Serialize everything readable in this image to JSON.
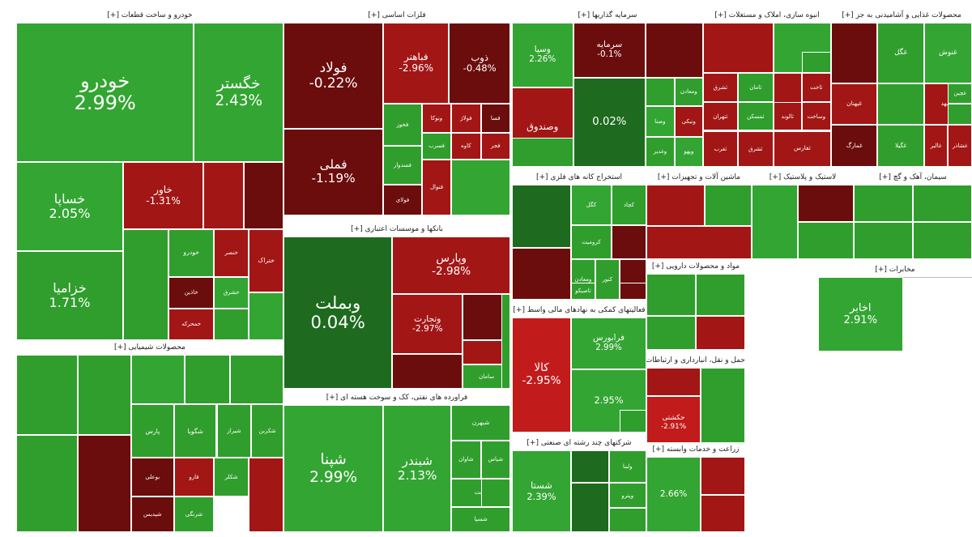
{
  "colors": {
    "strong_up": "#33a532",
    "up": "#2f9e2c",
    "dark_up": "#1e6b1f",
    "strong_down": "#c21b1b",
    "down": "#a31616",
    "dark_down": "#6b0d0d"
  },
  "sectors": [
    {
      "id": "auto",
      "title": "خودرو و ساخت قطعات [+]",
      "tiles": [
        {
          "name": "خودرو",
          "pct": "2.99%",
          "c": "strong_up"
        },
        {
          "name": "خگستر",
          "pct": "2.43%",
          "c": "strong_up"
        },
        {
          "name": "خساپا",
          "pct": "2.05%",
          "c": "strong_up"
        },
        {
          "name": "خاور",
          "pct": "-1.31%",
          "c": "down"
        },
        {
          "name": "",
          "pct": "",
          "c": "down"
        },
        {
          "name": "",
          "pct": "",
          "c": "dark_down"
        },
        {
          "name": "خزامیا",
          "pct": "1.71%",
          "c": "up"
        },
        {
          "name": "",
          "pct": "",
          "c": "up"
        },
        {
          "name": "خودرو",
          "pct": "",
          "c": "up"
        },
        {
          "name": "خنصر",
          "pct": "",
          "c": "down"
        },
        {
          "name": "خاذین",
          "pct": "",
          "c": "dark_down"
        },
        {
          "name": "خمحرکه",
          "pct": "",
          "c": "down"
        },
        {
          "name": "خشرق",
          "pct": "",
          "c": "strong_up"
        },
        {
          "name": "ختراک",
          "pct": "",
          "c": "down"
        },
        {
          "name": "",
          "pct": "",
          "c": "up"
        },
        {
          "name": "",
          "pct": "",
          "c": "strong_up"
        }
      ]
    },
    {
      "id": "chem",
      "title": "محصولات شیمیایی [+]",
      "tiles": [
        {
          "name": "",
          "pct": "",
          "c": "up"
        },
        {
          "name": "",
          "pct": "",
          "c": "up"
        },
        {
          "name": "",
          "pct": "",
          "c": "dark_down"
        },
        {
          "name": "",
          "pct": "",
          "c": "up"
        },
        {
          "name": "",
          "pct": "",
          "c": "strong_up"
        },
        {
          "name": "",
          "pct": "",
          "c": "up"
        },
        {
          "name": "پارس",
          "pct": "",
          "c": "up"
        },
        {
          "name": "بوعلی",
          "pct": "",
          "c": "dark_down"
        },
        {
          "name": "شپدیس",
          "pct": "",
          "c": "dark_down"
        },
        {
          "name": "شرنگی",
          "pct": "",
          "c": "up"
        },
        {
          "name": "شگویا",
          "pct": "",
          "c": "up"
        },
        {
          "name": "شیراز",
          "pct": "",
          "c": "up"
        },
        {
          "name": "شکربن",
          "pct": "",
          "c": "up"
        },
        {
          "name": "فارو",
          "pct": "",
          "c": "down"
        },
        {
          "name": "شکلر",
          "pct": "",
          "c": "up"
        },
        {
          "name": "",
          "pct": "",
          "c": "down"
        },
        {
          "name": "",
          "pct": "",
          "c": "up"
        }
      ]
    },
    {
      "id": "metals",
      "title": "فلزات اساسی [+]",
      "tiles": [
        {
          "name": "فولاد",
          "pct": "-0.22%",
          "c": "dark_down"
        },
        {
          "name": "فباهنر",
          "pct": "-2.96%",
          "c": "down"
        },
        {
          "name": "ذوب",
          "pct": "-0.48%",
          "c": "dark_down"
        },
        {
          "name": "فملی",
          "pct": "-1.19%",
          "c": "dark_down"
        },
        {
          "name": "فخوز",
          "pct": "",
          "c": "up"
        },
        {
          "name": "ونوکا",
          "pct": "",
          "c": "down"
        },
        {
          "name": "فولاژ",
          "pct": "",
          "c": "down"
        },
        {
          "name": "فسا",
          "pct": "",
          "c": "dark_down"
        },
        {
          "name": "فسرب",
          "pct": "",
          "c": "up"
        },
        {
          "name": "کاوه",
          "pct": "",
          "c": "down"
        },
        {
          "name": "فجر",
          "pct": "",
          "c": "down"
        },
        {
          "name": "فسدوار",
          "pct": "",
          "c": "up"
        },
        {
          "name": "فولای",
          "pct": "",
          "c": "dark_down"
        },
        {
          "name": "فنوال",
          "pct": "",
          "c": "down"
        },
        {
          "name": "",
          "pct": "",
          "c": "strong_up"
        }
      ]
    },
    {
      "id": "banks",
      "title": "بانکها و موسسات اعتباری [+]",
      "tiles": [
        {
          "name": "وبملت",
          "pct": "0.04%",
          "c": "dark_up"
        },
        {
          "name": "وپارس",
          "pct": "-2.98%",
          "c": "down"
        },
        {
          "name": "وتجارت",
          "pct": "-2.97%",
          "c": "down"
        },
        {
          "name": "",
          "pct": "",
          "c": "dark_down"
        },
        {
          "name": "",
          "pct": "",
          "c": "dark_down"
        },
        {
          "name": "",
          "pct": "",
          "c": "down"
        },
        {
          "name": "سامان",
          "pct": "",
          "c": "up"
        },
        {
          "name": "",
          "pct": "",
          "c": "up"
        }
      ]
    },
    {
      "id": "oil",
      "title": "فراورده های نفتی، کک و سوخت هسته ای [+]",
      "tiles": [
        {
          "name": "شپنا",
          "pct": "2.99%",
          "c": "strong_up"
        },
        {
          "name": "شبندر",
          "pct": "2.13%",
          "c": "strong_up"
        },
        {
          "name": "شبهرن",
          "pct": "",
          "c": "up"
        },
        {
          "name": "شاوان",
          "pct": "",
          "c": "up"
        },
        {
          "name": "شپاس",
          "pct": "",
          "c": "up"
        },
        {
          "name": "ونفت",
          "pct": "",
          "c": "up"
        },
        {
          "name": "شسپا",
          "pct": "",
          "c": "up"
        },
        {
          "name": "",
          "pct": "",
          "c": "up"
        }
      ]
    },
    {
      "id": "invest",
      "title": "سرمایه گذاریها [+]",
      "tiles": [
        {
          "name": "وسپا",
          "pct": "2.26%",
          "c": "strong_up"
        },
        {
          "name": "سرمایه",
          "pct": "-0.1%",
          "c": "dark_down"
        },
        {
          "name": "",
          "pct": "",
          "c": "dark_down"
        },
        {
          "name": "",
          "pct": "0.02%",
          "c": "dark_up"
        },
        {
          "name": "وصندوق",
          "pct": "",
          "c": "down"
        },
        {
          "name": "",
          "pct": "",
          "c": "up"
        },
        {
          "name": "ومعادن",
          "pct": "",
          "c": "up"
        },
        {
          "name": "وصنا",
          "pct": "",
          "c": "strong_up"
        },
        {
          "name": "ونیکی",
          "pct": "",
          "c": "down"
        },
        {
          "name": "وغدیر",
          "pct": "",
          "c": "up"
        },
        {
          "name": "ویهو",
          "pct": "",
          "c": "strong_up"
        },
        {
          "name": "",
          "pct": "",
          "c": "up"
        },
        {
          "name": "وآیند",
          "pct": "",
          "c": "dark_down"
        },
        {
          "name": "سیار",
          "pct": "",
          "c": "down"
        },
        {
          "name": "وکار",
          "pct": "",
          "c": "down"
        },
        {
          "name": "وبیمه",
          "pct": "",
          "c": "up"
        },
        {
          "name": "",
          "pct": "",
          "c": "strong_up"
        }
      ]
    },
    {
      "id": "mining",
      "title": "استخراج کانه های فلزی [+]",
      "tiles": [
        {
          "name": "",
          "pct": "",
          "c": "dark_up"
        },
        {
          "name": "",
          "pct": "",
          "c": "dark_down"
        },
        {
          "name": "کگل",
          "pct": "",
          "c": "strong_up"
        },
        {
          "name": "کچاد",
          "pct": "",
          "c": "up"
        },
        {
          "name": "کرومیت",
          "pct": "",
          "c": "up"
        },
        {
          "name": "",
          "pct": "",
          "c": "dark_down"
        },
        {
          "name": "ومعادن",
          "pct": "",
          "c": "up"
        },
        {
          "name": "کنور",
          "pct": "",
          "c": "up"
        },
        {
          "name": "",
          "pct": "",
          "c": "dark_down"
        },
        {
          "name": "تاصیکو",
          "pct": "",
          "c": "up"
        },
        {
          "name": "",
          "pct": "",
          "c": "dark_down"
        }
      ]
    },
    {
      "id": "finance",
      "title": "فعالیتهای کمکی به نهادهای مالی واسط [+]",
      "tiles": [
        {
          "name": "کالا",
          "pct": "-2.95%",
          "c": "strong_down"
        },
        {
          "name": "فرابورس",
          "pct": "2.99%",
          "c": "strong_up"
        },
        {
          "name": "",
          "pct": "2.95%",
          "c": "strong_up"
        },
        {
          "name": "",
          "pct": "",
          "c": "up"
        }
      ]
    },
    {
      "id": "multi",
      "title": "شرکتهای چند رشته ای صنعتی [+]",
      "tiles": [
        {
          "name": "شستا",
          "pct": "2.39%",
          "c": "strong_up"
        },
        {
          "name": "",
          "pct": "",
          "c": "dark_up"
        },
        {
          "name": "ولبنا",
          "pct": "",
          "c": "up"
        },
        {
          "name": "",
          "pct": "",
          "c": "dark_up"
        },
        {
          "name": "وپترو",
          "pct": "",
          "c": "up"
        },
        {
          "name": "",
          "pct": "",
          "c": "up"
        }
      ]
    },
    {
      "id": "building",
      "title": "انبوه سازی، املاک و مستغلات [+]",
      "tiles": [
        {
          "name": "",
          "pct": "",
          "c": "down"
        },
        {
          "name": "",
          "pct": "",
          "c": "strong_up"
        },
        {
          "name": "",
          "pct": "",
          "c": "down"
        },
        {
          "name": "ثاخت",
          "pct": "",
          "c": "down"
        },
        {
          "name": "ثشرق",
          "pct": "",
          "c": "down"
        },
        {
          "name": "ثتهران",
          "pct": "",
          "c": "down"
        },
        {
          "name": "ثالوند",
          "pct": "",
          "c": "down"
        },
        {
          "name": "ثمسکن",
          "pct": "",
          "c": "up"
        },
        {
          "name": "ثامان",
          "pct": "",
          "c": "up"
        },
        {
          "name": "وساخت",
          "pct": "",
          "c": "down"
        },
        {
          "name": "ثغرب",
          "pct": "",
          "c": "down"
        },
        {
          "name": "ثشرق",
          "pct": "",
          "c": "down"
        },
        {
          "name": "ثفارس",
          "pct": "",
          "c": "down"
        },
        {
          "name": "",
          "pct": "",
          "c": "up"
        }
      ]
    },
    {
      "id": "food",
      "title": "محصولات غذایی و آشامیدنی به جز [+]",
      "tiles": [
        {
          "name": "",
          "pct": "",
          "c": "dark_down"
        },
        {
          "name": "غگل",
          "pct": "",
          "c": "up"
        },
        {
          "name": "غنوش",
          "pct": "",
          "c": "strong_up"
        },
        {
          "name": "غبهنان",
          "pct": "",
          "c": "down"
        },
        {
          "name": "غمارگ",
          "pct": "",
          "c": "dark_down"
        },
        {
          "name": "",
          "pct": "",
          "c": "up"
        },
        {
          "name": "غشهد",
          "pct": "",
          "c": "down"
        },
        {
          "name": "غگیلا",
          "pct": "",
          "c": "up"
        },
        {
          "name": "غالبر",
          "pct": "",
          "c": "down"
        },
        {
          "name": "غشاذر",
          "pct": "",
          "c": "down"
        },
        {
          "name": "غچین",
          "pct": "",
          "c": "up"
        },
        {
          "name": "",
          "pct": "",
          "c": "up"
        }
      ]
    },
    {
      "id": "machinery",
      "title": "ماشین آلات و تجهیزات [+]",
      "tiles": [
        {
          "name": "",
          "pct": "",
          "c": "down"
        },
        {
          "name": "",
          "pct": "",
          "c": "up"
        },
        {
          "name": "",
          "pct": "",
          "c": "down"
        }
      ]
    },
    {
      "id": "rubber",
      "title": "لاستیک و پلاستیک [+]",
      "tiles": [
        {
          "name": "",
          "pct": "",
          "c": "strong_up"
        },
        {
          "name": "",
          "pct": "",
          "c": "dark_down"
        },
        {
          "name": "",
          "pct": "",
          "c": "up"
        }
      ]
    },
    {
      "id": "cement",
      "title": "سیمان، آهک و گچ [+]",
      "tiles": [
        {
          "name": "",
          "pct": "",
          "c": "up"
        },
        {
          "name": "",
          "pct": "",
          "c": "up"
        },
        {
          "name": "",
          "pct": "",
          "c": "up"
        },
        {
          "name": "",
          "pct": "",
          "c": "up"
        }
      ]
    },
    {
      "id": "pharma",
      "title": "مواد و محصولات دارویی [+]",
      "tiles": [
        {
          "name": "",
          "pct": "",
          "c": "up"
        },
        {
          "name": "",
          "pct": "",
          "c": "up"
        },
        {
          "name": "",
          "pct": "",
          "c": "up"
        },
        {
          "name": "",
          "pct": "",
          "c": "down"
        }
      ]
    },
    {
      "id": "telecom",
      "title": "مخابرات [+]",
      "tiles": [
        {
          "name": "اخابر",
          "pct": "2.91%",
          "c": "strong_up"
        }
      ]
    },
    {
      "id": "retail",
      "title": "حمل و نقل، انبارداری و ارتباطات [+]",
      "tiles": [
        {
          "name": "",
          "pct": "",
          "c": "down"
        },
        {
          "name": "حکشتی",
          "pct": "-2.91%",
          "c": "strong_down"
        },
        {
          "name": "",
          "pct": "",
          "c": "up"
        }
      ]
    },
    {
      "id": "agri",
      "title": "زراعت و خدمات وابسته [+]",
      "tiles": [
        {
          "name": "",
          "pct": "2.66%",
          "c": "strong_up"
        },
        {
          "name": "",
          "pct": "",
          "c": "down"
        },
        {
          "name": "",
          "pct": "",
          "c": "down"
        }
      ]
    }
  ]
}
